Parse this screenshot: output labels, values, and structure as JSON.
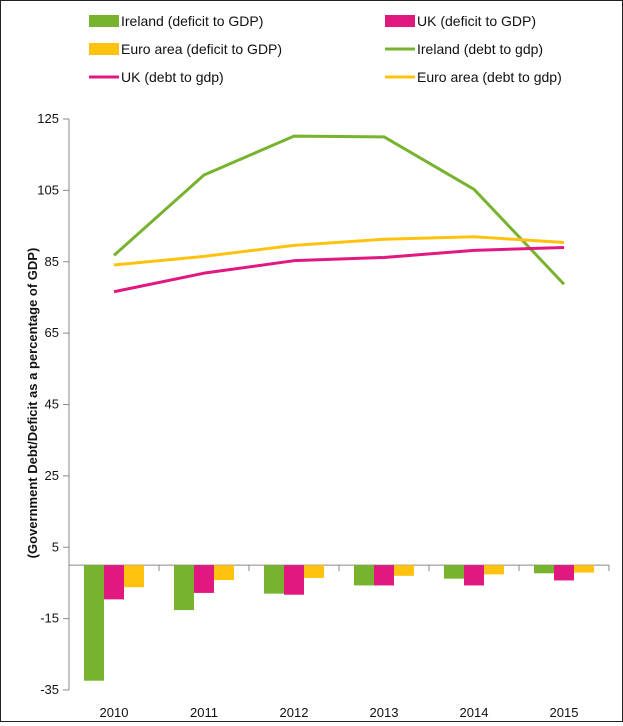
{
  "chart_data": {
    "type": "bar",
    "categories": [
      "2010",
      "2011",
      "2012",
      "2013",
      "2014",
      "2015"
    ],
    "ylabel": "(Government Debt/Deficit as a percentage of GDP)",
    "xlabel": "",
    "ylim": [
      -35,
      125
    ],
    "yticks": [
      125,
      105,
      85,
      65,
      45,
      25,
      5,
      -15,
      -35
    ],
    "grid": false,
    "legend_position": "top",
    "bar_series": [
      {
        "name": "Ireland (deficit to GDP)",
        "color": "#77b32f",
        "values": [
          -32.4,
          -12.6,
          -8.0,
          -5.7,
          -3.8,
          -2.3
        ]
      },
      {
        "name": "UK (deficit to GDP)",
        "color": "#e0187f",
        "values": [
          -9.6,
          -7.8,
          -8.3,
          -5.7,
          -5.7,
          -4.3
        ]
      },
      {
        "name": "Euro area (deficit to GDP)",
        "color": "#ffc20e",
        "values": [
          -6.2,
          -4.2,
          -3.6,
          -3.0,
          -2.6,
          -2.1
        ]
      }
    ],
    "line_series": [
      {
        "name": "Ireland (debt to gdp)",
        "color": "#77b32f",
        "values": [
          86.8,
          109.3,
          120.2,
          120.0,
          105.3,
          78.7
        ]
      },
      {
        "name": "UK (debt to gdp)",
        "color": "#e0187f",
        "values": [
          76.6,
          81.8,
          85.3,
          86.2,
          88.2,
          89.0
        ]
      },
      {
        "name": "Euro area (debt to gdp)",
        "color": "#ffc20e",
        "values": [
          84.1,
          86.5,
          89.6,
          91.3,
          92.0,
          90.4
        ]
      }
    ],
    "legend": [
      {
        "label": "Ireland (deficit to GDP)",
        "kind": "bar",
        "color": "#77b32f"
      },
      {
        "label": "UK (deficit to GDP)",
        "kind": "bar",
        "color": "#e0187f"
      },
      {
        "label": "Euro area (deficit to GDP)",
        "kind": "bar",
        "color": "#ffc20e"
      },
      {
        "label": "Ireland (debt to gdp)",
        "kind": "line",
        "color": "#77b32f"
      },
      {
        "label": "UK (debt to gdp)",
        "kind": "line",
        "color": "#e0187f"
      },
      {
        "label": "Euro area (debt to gdp)",
        "kind": "line",
        "color": "#ffc20e"
      }
    ]
  }
}
